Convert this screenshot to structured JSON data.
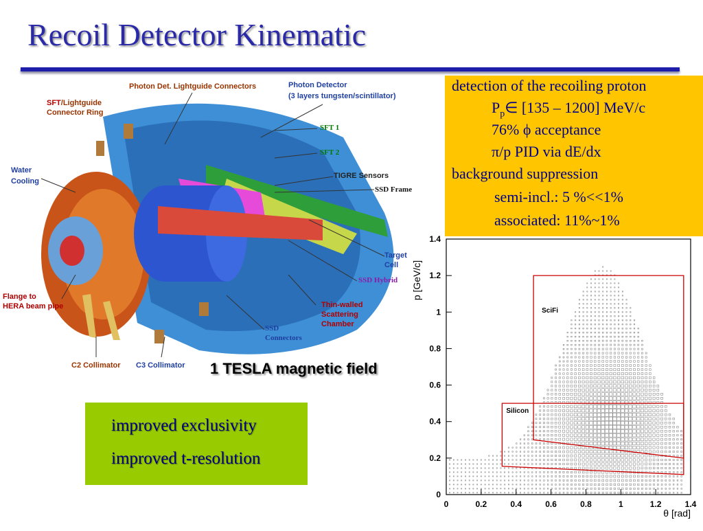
{
  "slide": {
    "title": "Recoil Detector Kinematic"
  },
  "detector": {
    "labels": {
      "photon_lightguide": "Photon Det. Lightguide Connectors",
      "photon_detector": "Photon Detector",
      "photon_detector_sub": "(3 layers tungsten/scintillator)",
      "sft_bold": "SFT",
      "sft_lightguide": "/Lightguide",
      "connector_ring": "Connector Ring",
      "sft1": "SFT 1",
      "sft2": "SFT 2",
      "water": "Water",
      "cooling": "Cooling",
      "tigre": "TIGRE Sensors",
      "ssd_frame": "SSD  Frame",
      "target": "Target",
      "cell": "Cell",
      "ssd_hybrid": "SSD Hybrid",
      "flange_to": "Flange to",
      "hera": "HERA beam pipe",
      "thin_walled": "Thin-walled",
      "scattering": "Scattering",
      "chamber": "Chamber",
      "ssd": "SSD",
      "connectors": "Connectors",
      "c2": "C2 Collimator",
      "c3": "C3 Collimator"
    },
    "colors": {
      "brown_label": "#993300",
      "blue_label": "#1f3fa0",
      "green_label": "#007a00",
      "purple_label": "#8a1aa8",
      "red_label": "#b00000"
    }
  },
  "info": {
    "line1": "detection of the recoiling proton",
    "line2_p": "P",
    "line2_sub": "p",
    "line2_rest": "∈ [135 – 1200] MeV/c",
    "line3": "76% ϕ acceptance",
    "line4": "π/p PID via dE/dx",
    "line5": "background suppression",
    "line6": "semi-incl.: 5 %<<1%",
    "line7": "associated: 11%~1%",
    "bg_color": "#ffc600"
  },
  "tesla": "1 TESLA magnetic field",
  "improvements": {
    "line1": "improved exclusivity",
    "line2": "improved t-resolution",
    "bg_color": "#99cc00"
  },
  "chart_data": {
    "type": "scatter",
    "xlabel": "θ [rad]",
    "ylabel": "p [GeV/c]",
    "xlim": [
      0,
      1.4
    ],
    "ylim": [
      0,
      1.4
    ],
    "xticks": [
      "0",
      "0.2",
      "0.4",
      "0.6",
      "0.8",
      "1",
      "1.2",
      "1.4"
    ],
    "yticks": [
      "0",
      "0.2",
      "0.4",
      "0.6",
      "0.8",
      "1",
      "1.2",
      "1.4"
    ],
    "regions": [
      {
        "name": "SciFi",
        "polygon": [
          [
            0.5,
            1.2
          ],
          [
            1.36,
            1.2
          ],
          [
            1.36,
            0.2
          ],
          [
            0.5,
            0.3
          ]
        ]
      },
      {
        "name": "Silicon",
        "polygon": [
          [
            0.32,
            0.5
          ],
          [
            1.36,
            0.5
          ],
          [
            1.36,
            0.11
          ],
          [
            0.32,
            0.155
          ]
        ]
      }
    ],
    "region_color": "#cc0000"
  }
}
